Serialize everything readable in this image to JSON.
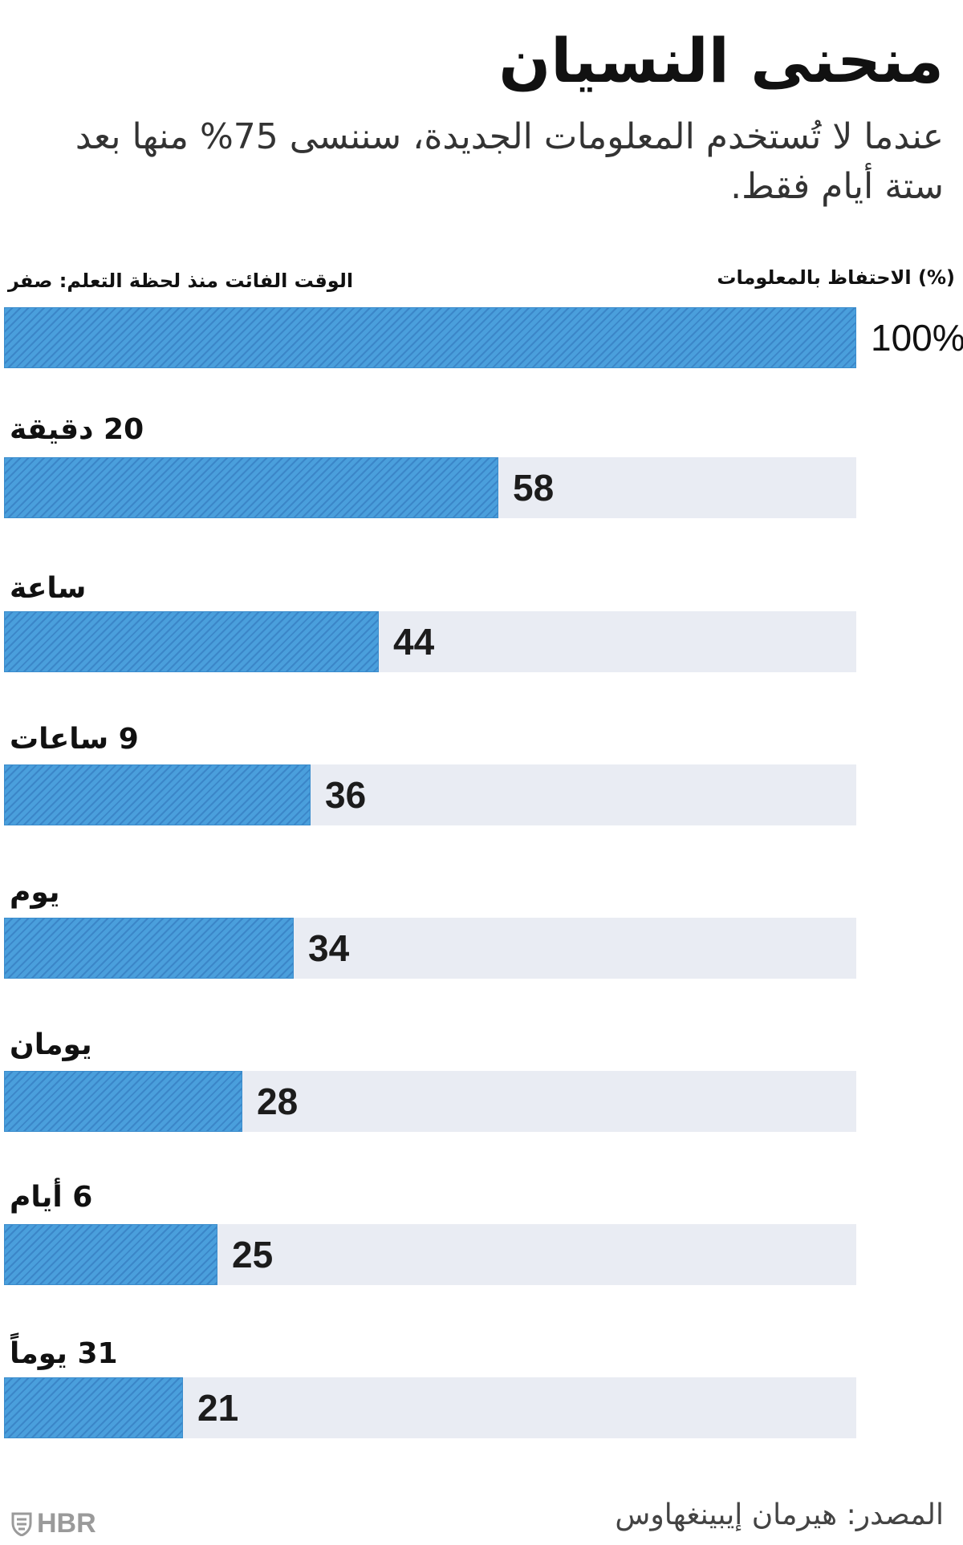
{
  "chart_data": {
    "type": "bar",
    "title": "منحنى النسيان",
    "subtitle": "عندما لا تُستخدم المعلومات الجديدة، سننسى 75% منها بعد ستة أيام فقط.",
    "xlabel": "(%) الاحتفاظ بالمعلومات",
    "ylabel": "الوقت الفائت منذ لحظة التعلم: صفر",
    "categories": [
      "صفر",
      "20 دقيقة",
      "ساعة",
      "9 ساعات",
      "يوم",
      "يومان",
      "6 أيام",
      "31 يوماً"
    ],
    "row_labels": [
      "",
      "20 دقيقة",
      "ساعة",
      "9 ساعات",
      "يوم",
      "يومان",
      "6 أيام",
      "31 يوماً"
    ],
    "value_labels": [
      "100%",
      "58",
      "44",
      "36",
      "34",
      "28",
      "25",
      "21"
    ],
    "values": [
      100,
      58,
      44,
      36,
      34,
      28,
      25,
      21
    ],
    "xlim": [
      0,
      100
    ],
    "grid": false,
    "legend": "none"
  },
  "source": "المصدر: هيرمان إيبينغهاوس",
  "logo": {
    "text": "HBR",
    "icon": "hbr-shield-icon"
  },
  "colors": {
    "bar": "#4a9fdc",
    "hatch": "#3b86c8",
    "track": "#e9ecf3"
  }
}
